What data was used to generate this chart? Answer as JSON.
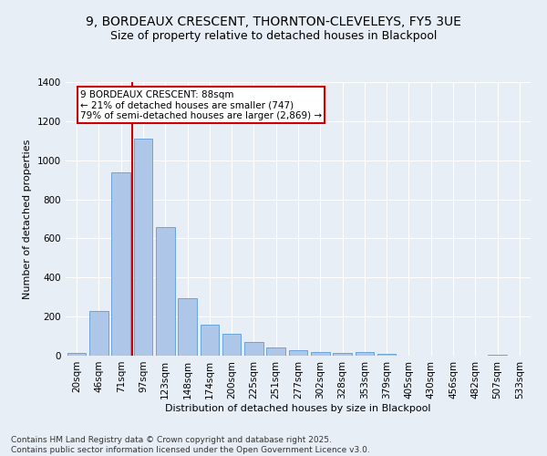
{
  "title": "9, BORDEAUX CRESCENT, THORNTON-CLEVELEYS, FY5 3UE",
  "subtitle": "Size of property relative to detached houses in Blackpool",
  "xlabel": "Distribution of detached houses by size in Blackpool",
  "ylabel": "Number of detached properties",
  "categories": [
    "20sqm",
    "46sqm",
    "71sqm",
    "97sqm",
    "123sqm",
    "148sqm",
    "174sqm",
    "200sqm",
    "225sqm",
    "251sqm",
    "277sqm",
    "302sqm",
    "328sqm",
    "353sqm",
    "379sqm",
    "405sqm",
    "430sqm",
    "456sqm",
    "482sqm",
    "507sqm",
    "533sqm"
  ],
  "values": [
    15,
    230,
    940,
    1110,
    660,
    295,
    160,
    110,
    70,
    40,
    28,
    20,
    15,
    20,
    10,
    0,
    0,
    0,
    0,
    5,
    0
  ],
  "bar_color": "#aec6e8",
  "bar_edge_color": "#5b9bd5",
  "vline_x_idx": 3,
  "vline_color": "#cc0000",
  "annotation_text": "9 BORDEAUX CRESCENT: 88sqm\n← 21% of detached houses are smaller (747)\n79% of semi-detached houses are larger (2,869) →",
  "annotation_box_color": "#ffffff",
  "annotation_box_edge": "#cc0000",
  "ylim": [
    0,
    1400
  ],
  "yticks": [
    0,
    200,
    400,
    600,
    800,
    1000,
    1200,
    1400
  ],
  "bg_color": "#e8eef5",
  "plot_bg_color": "#e8eef5",
  "footer": "Contains HM Land Registry data © Crown copyright and database right 2025.\nContains public sector information licensed under the Open Government Licence v3.0.",
  "title_fontsize": 10,
  "subtitle_fontsize": 9,
  "axis_label_fontsize": 8,
  "tick_fontsize": 7.5,
  "annotation_fontsize": 7.5,
  "footer_fontsize": 6.5
}
